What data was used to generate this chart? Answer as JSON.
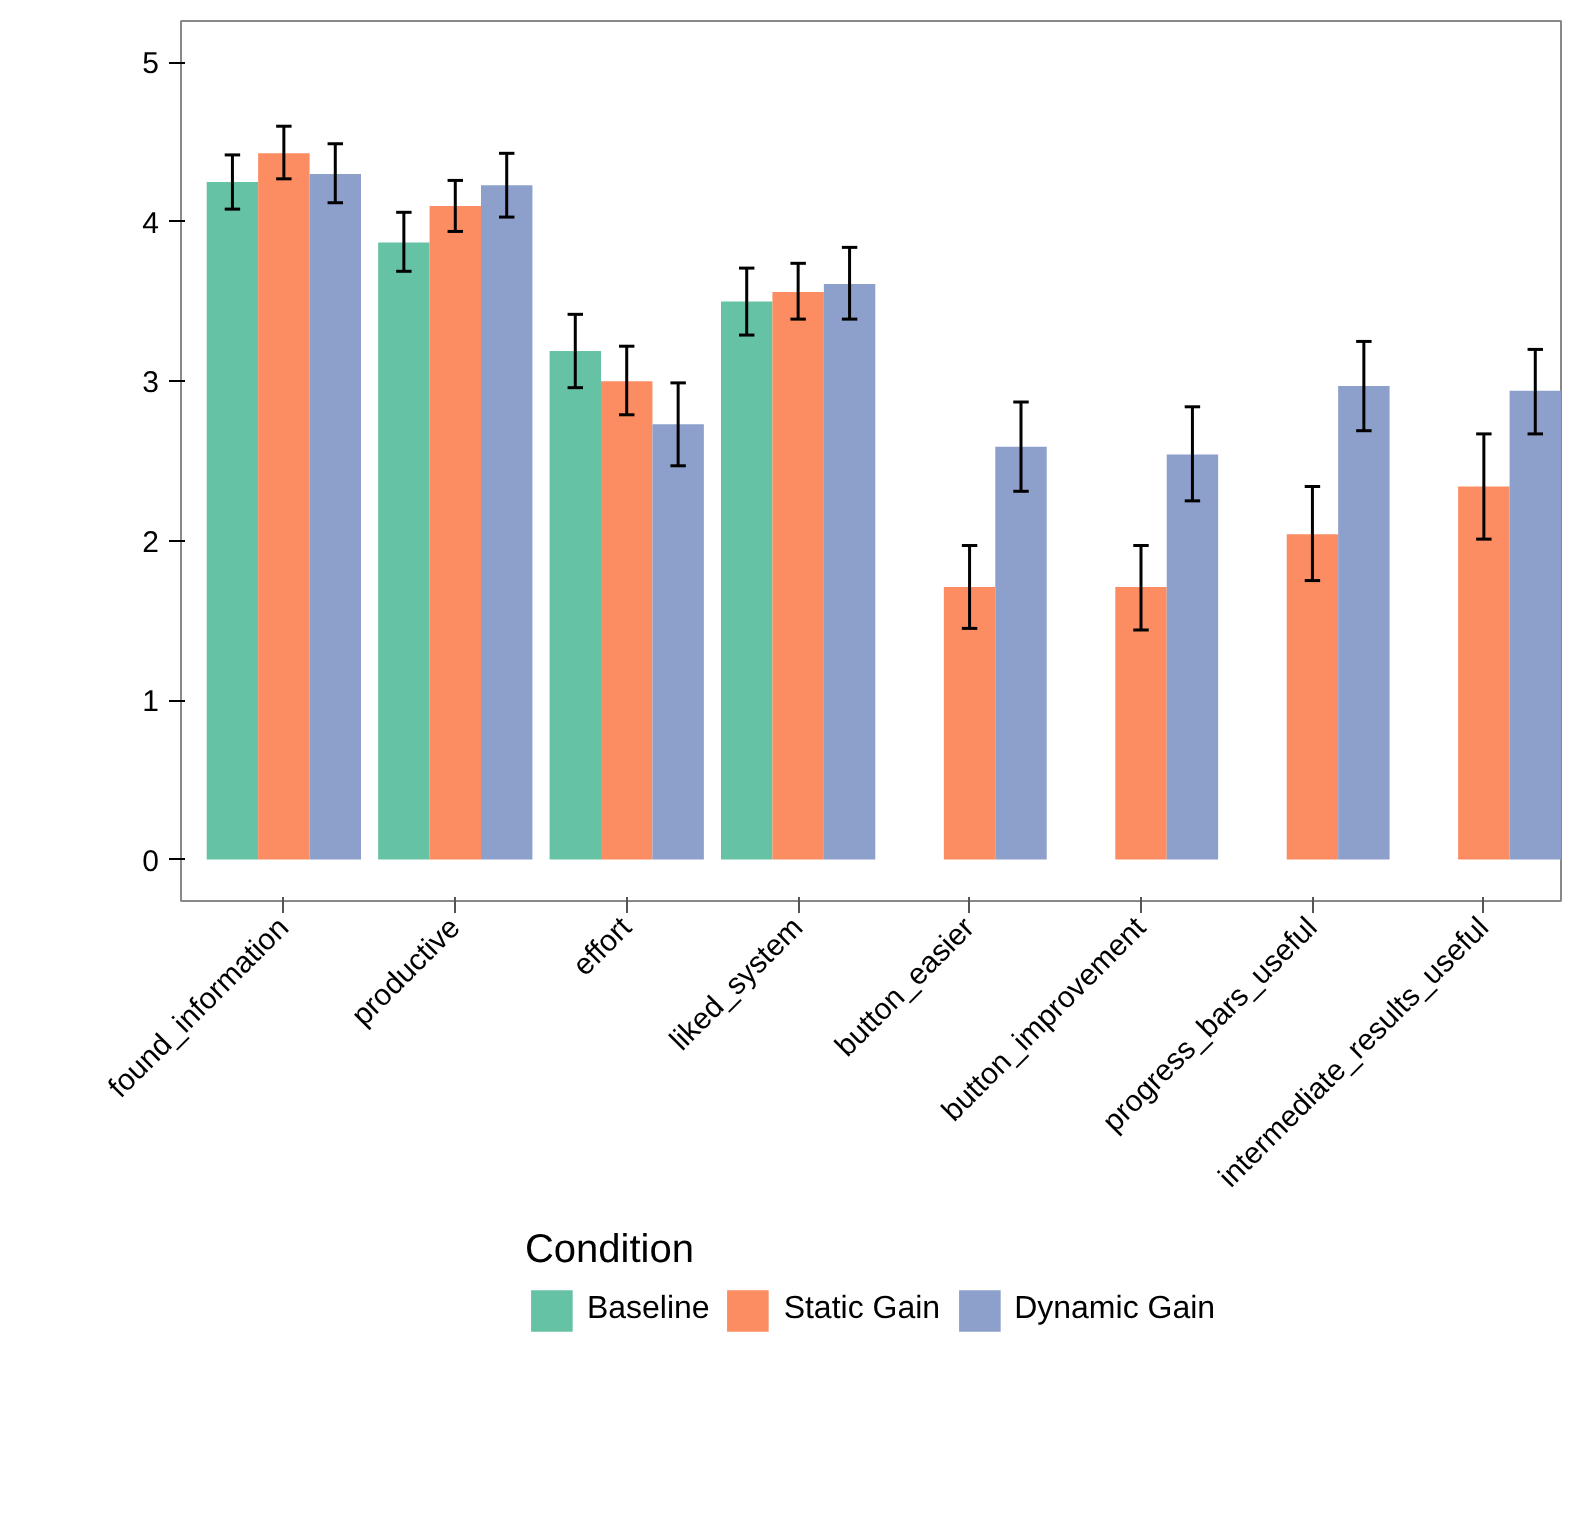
{
  "chart_data": {
    "type": "bar",
    "categories": [
      "found_information",
      "productive",
      "effort",
      "liked_system",
      "button_easier",
      "button_improvement",
      "progress_bars_useful",
      "intermediate_results_useful"
    ],
    "series": [
      {
        "name": "Baseline",
        "color": "#66c2a5",
        "values": [
          4.25,
          3.87,
          3.19,
          3.5,
          null,
          null,
          null,
          null
        ],
        "errors": [
          [
            4.08,
            4.42
          ],
          [
            3.69,
            4.06
          ],
          [
            2.96,
            3.42
          ],
          [
            3.29,
            3.71
          ],
          null,
          null,
          null,
          null
        ]
      },
      {
        "name": "Static Gain",
        "color": "#fc8d62",
        "values": [
          4.43,
          4.1,
          3.0,
          3.56,
          1.71,
          1.71,
          2.04,
          2.34
        ],
        "errors": [
          [
            4.27,
            4.6
          ],
          [
            3.94,
            4.26
          ],
          [
            2.79,
            3.22
          ],
          [
            3.39,
            3.74
          ],
          [
            1.45,
            1.97
          ],
          [
            1.44,
            1.97
          ],
          [
            1.75,
            2.34
          ],
          [
            2.01,
            2.67
          ]
        ]
      },
      {
        "name": "Dynamic Gain",
        "color": "#8da0cb",
        "values": [
          4.3,
          4.23,
          2.73,
          3.61,
          2.59,
          2.54,
          2.97,
          2.94
        ],
        "errors": [
          [
            4.12,
            4.49
          ],
          [
            4.03,
            4.43
          ],
          [
            2.47,
            2.99
          ],
          [
            3.39,
            3.84
          ],
          [
            2.31,
            2.87
          ],
          [
            2.25,
            2.84
          ],
          [
            2.69,
            3.25
          ],
          [
            2.67,
            3.2
          ]
        ]
      }
    ],
    "legend_title": "Condition",
    "legend": "bottom",
    "ylim": [
      -0.26,
      5.26
    ],
    "yticks": [
      0,
      1,
      2,
      3,
      4,
      5
    ],
    "grid": false
  }
}
